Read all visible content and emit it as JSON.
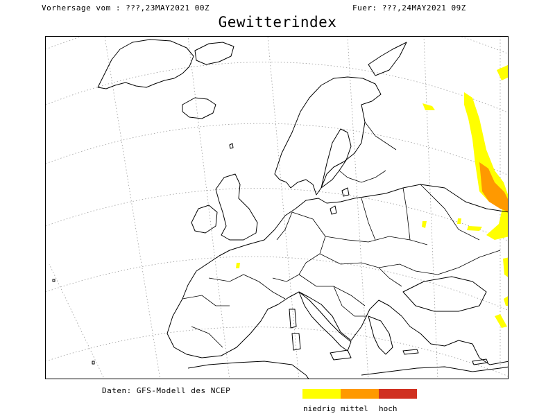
{
  "header": {
    "forecast_from": "Vorhersage vom : ???,23MAY2021 00Z",
    "valid_for": "Fuer: ???,24MAY2021 09Z"
  },
  "title": "Gewitterindex",
  "credit": "Daten: GFS-Modell des NCEP",
  "legend": {
    "items": [
      {
        "label": "niedrig",
        "color": "#ffff00"
      },
      {
        "label": "mittel",
        "color": "#ff9900"
      },
      {
        "label": "hoch",
        "color": "#d03020"
      }
    ]
  },
  "colors": {
    "low": "#ffff00",
    "medium": "#ff9900",
    "high": "#d03020",
    "coast": "#000000",
    "grid": "#999999"
  }
}
